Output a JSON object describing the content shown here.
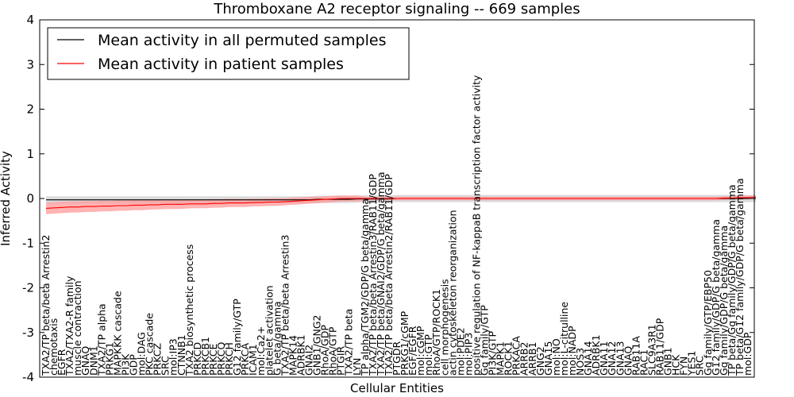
{
  "chart_data": {
    "type": "line",
    "title": "Thromboxane A2 receptor signaling -- 669 samples",
    "xlabel": "Cellular Entities",
    "ylabel": "Inferred Activity",
    "ylim": [
      -4,
      4
    ],
    "yticks": [
      -4,
      -3,
      -2,
      -1,
      0,
      1,
      2,
      3,
      4
    ],
    "grid": false,
    "legend_position": "top-left",
    "colors": {
      "permuted": "#000000",
      "patient": "#ff0000",
      "band_patient": "#ff9a9a",
      "band_permuted": "#cccccc"
    },
    "series": [
      {
        "name": "Mean activity in all permuted samples",
        "key": "permuted"
      },
      {
        "name": "Mean activity in patient samples",
        "key": "patient"
      }
    ],
    "categories": [
      "TXA2/TP beta/beta Arrestin2",
      "chemotaxis",
      "EGFR",
      "TXA2/TXA2-R family",
      "muscle contraction",
      "GNAQ",
      "DNM1",
      "TXA2/TP alpha",
      "PRKG1",
      "MAPKKK cascade",
      "PI3K",
      "GDP",
      "mol:DAG",
      "PKC cascade",
      "PRKCZ",
      "SRC",
      "mol:IP3",
      "CTNNB1",
      "TXA2 biosynthetic process",
      "PRKCD",
      "PRKCB1",
      "PRKCE",
      "PRKCQ",
      "PRKCH",
      "G12 family/GTP",
      "PRKCA",
      "ICAM1",
      "mol:Ca2+",
      "platelet activation",
      "G beta/gamma",
      "TXA2/TP beta/beta Arrestin3",
      "MAPK14",
      "ADRBK1",
      "GNAI2",
      "GNB1/GNG2",
      "RhoA/GDP",
      "RhoA/GTP",
      "PTGIR",
      "TXA2/TP beta",
      "LYN",
      "TP alpha/TGM2/GDP/G beta/gamma",
      "TXA2/TP beta/beta Arrestin3/RAB11/GDP",
      "TXA2/TP beta/GNAI2/GDP/G beta/gamma",
      "TXA2/TP beta/beta Arrestin2/RAB11/GDP",
      "PTGDR",
      "PRKG1/cGMP",
      "EGF/EGFR",
      "mol:cGMP",
      "mol:GTP",
      "RhoA/GTP/ROCK1",
      "cell morphogenesis",
      "actin cytoskeleton reorganization",
      "mol:PDE2",
      "mol:PIP3",
      "positive regulation of NF-kappaB transcription factor activity",
      "Gq family/GTP",
      "PI3K/GTP",
      "MAPK1",
      "ROCK1",
      "PRKACA",
      "ARRB2",
      "ARRB1",
      "GNG2",
      "GNA15",
      "mol:NO",
      "mol:L-citrulline",
      "mol:NADP",
      "NOS3",
      "GNA14",
      "ADRBK1",
      "GNA11",
      "GNA12",
      "GNA13",
      "GNAQ",
      "RAB11A",
      "RAC1",
      "SLC9A3R1",
      "RAB11/GDP",
      "GNB1",
      "HCK",
      "FYN",
      "YES1",
      "SRC",
      "Gq family/GTP/EBP50",
      "G12 family/GDP/G beta/gamma",
      "Gq family/GDP/G beta/gamma",
      "TP beta/Gq family/GDP/G beta/gamma",
      "TP beta/G12 family/GDP/G beta/gamma",
      "mol:GDP"
    ],
    "patient_mean": [
      -0.22,
      -0.21,
      -0.2,
      -0.19,
      -0.19,
      -0.18,
      -0.18,
      -0.17,
      -0.17,
      -0.16,
      -0.16,
      -0.15,
      -0.15,
      -0.14,
      -0.14,
      -0.13,
      -0.13,
      -0.13,
      -0.12,
      -0.12,
      -0.12,
      -0.11,
      -0.11,
      -0.1,
      -0.1,
      -0.1,
      -0.09,
      -0.09,
      -0.08,
      -0.08,
      -0.07,
      -0.06,
      -0.05,
      -0.04,
      -0.03,
      -0.02,
      -0.01,
      0.0,
      0.0,
      0.0,
      0.0,
      0.0,
      0.0,
      0.0,
      0.0,
      0.0,
      0.0,
      0.0,
      0.0,
      0.0,
      0.0,
      0.0,
      0.0,
      0.0,
      0.0,
      0.0,
      0.0,
      0.0,
      0.0,
      0.0,
      0.0,
      0.0,
      0.0,
      0.0,
      0.0,
      0.0,
      0.0,
      0.0,
      0.0,
      0.0,
      0.0,
      0.0,
      0.0,
      0.0,
      0.0,
      0.0,
      0.0,
      0.0,
      0.0,
      0.0,
      0.0,
      0.0,
      0.0,
      0.0,
      0.0,
      0.01,
      0.01,
      0.02,
      0.02,
      0.03
    ],
    "patient_band": 0.13,
    "permuted_mean": [
      -0.03,
      -0.03,
      -0.03,
      -0.03,
      -0.03,
      -0.03,
      -0.03,
      -0.03,
      -0.03,
      -0.03,
      -0.03,
      -0.03,
      -0.03,
      -0.03,
      -0.03,
      -0.03,
      -0.03,
      -0.03,
      -0.03,
      -0.03,
      -0.03,
      -0.03,
      -0.03,
      -0.03,
      -0.03,
      -0.03,
      -0.03,
      -0.03,
      -0.03,
      -0.03,
      -0.03,
      -0.03,
      -0.03,
      -0.03,
      -0.02,
      -0.02,
      -0.02,
      -0.02,
      -0.02,
      -0.01,
      -0.01,
      -0.01,
      -0.01,
      -0.01,
      0.0,
      0.0,
      0.0,
      0.0,
      0.0,
      0.0,
      0.0,
      0.0,
      0.0,
      0.0,
      0.0,
      0.0,
      0.0,
      0.0,
      0.0,
      0.0,
      0.0,
      0.0,
      0.0,
      0.0,
      0.0,
      0.0,
      0.0,
      0.0,
      0.0,
      0.0,
      0.0,
      0.0,
      0.0,
      0.0,
      0.0,
      0.0,
      0.0,
      0.0,
      0.0,
      0.0,
      0.0,
      0.0,
      0.0,
      0.0,
      0.0,
      0.0,
      0.0,
      0.0,
      0.0,
      0.0
    ],
    "permuted_band": 0.08
  }
}
